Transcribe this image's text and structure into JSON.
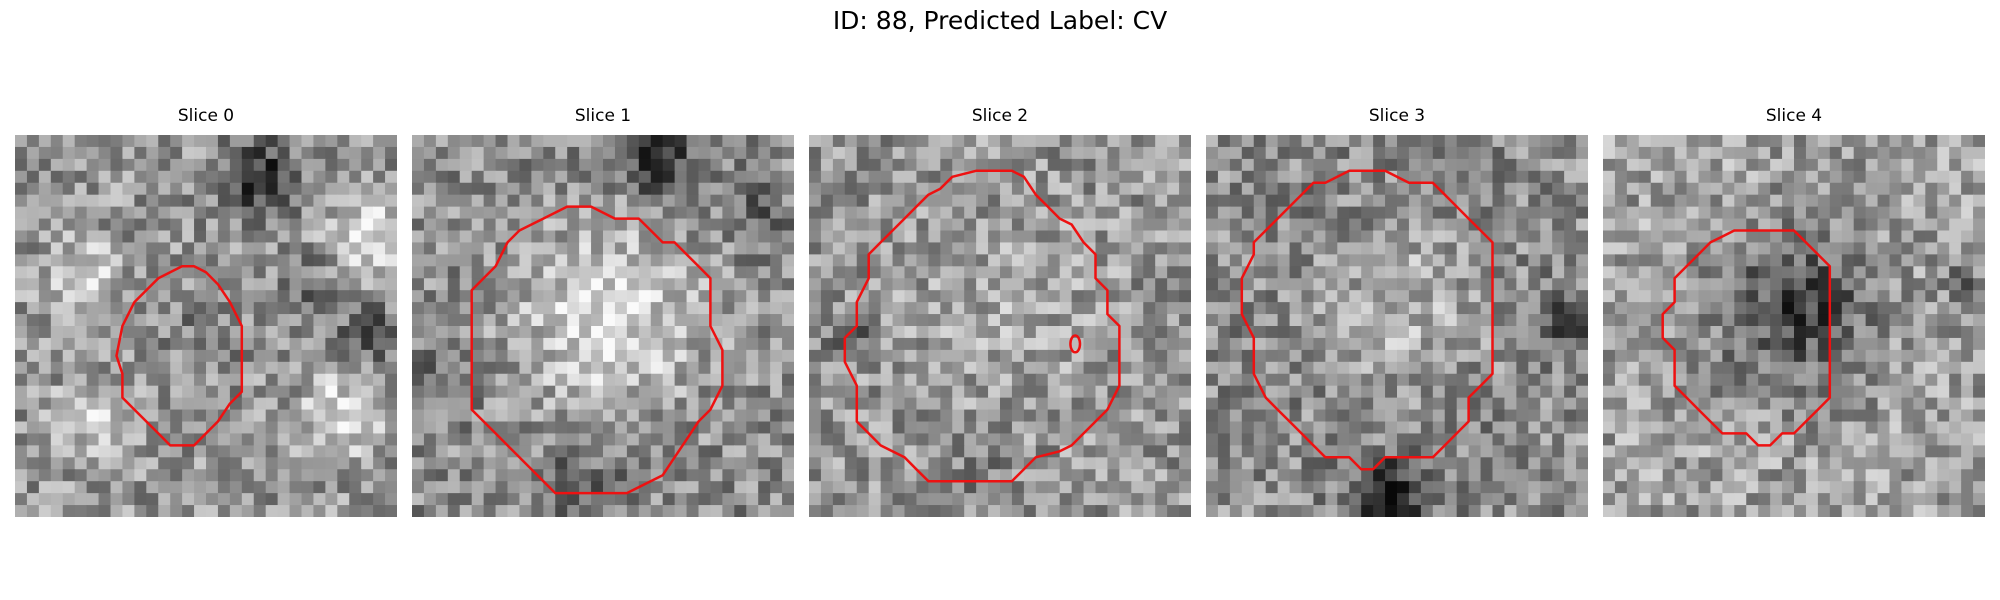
{
  "figure": {
    "suptitle": "ID: 88, Predicted Label: CV",
    "contour_color": "#ee1111",
    "colormap": "gray",
    "panels": [
      {
        "title": "Slice 0",
        "content": "noisy grayscale patch with small oval red contour"
      },
      {
        "title": "Slice 1",
        "content": "bright round blob outlined by large octagonal red contour"
      },
      {
        "title": "Slice 2",
        "content": "textured round region outlined by large red contour with tiny inner loop"
      },
      {
        "title": "Slice 3",
        "content": "bright round blob with dark rim outlined by large red contour"
      },
      {
        "title": "Slice 4",
        "content": "dark irregular region outlined by medium red contour"
      }
    ]
  }
}
